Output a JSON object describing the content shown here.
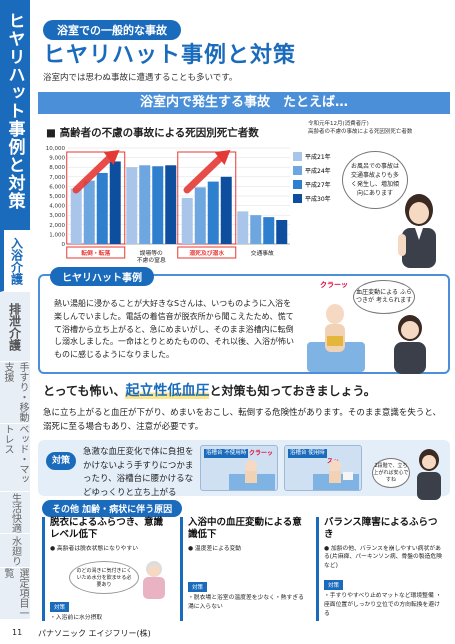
{
  "side": {
    "top_label": "ヒヤリハット事例と対策",
    "tabs": [
      "入浴介護",
      "排泄介護",
      "手すり・移動支援",
      "ベッド・マットレス",
      "生活快適",
      "水廻り",
      "選定項目一覧"
    ]
  },
  "header": {
    "pill": "浴室での一般的な事故",
    "title": "ヒヤリハット事例と対策",
    "lead": "浴室内では思わぬ事故に遭遇することも多いです。"
  },
  "banner": "浴室内で発生する事故　たとえば…",
  "chart_title": "■ 高齢者の不慮の事故による死因別死亡者数",
  "chart_source": [
    "令和元年12月(消費者庁)",
    "高齢者の不慮の事故による死因別死亡者数"
  ],
  "chart_data": {
    "type": "bar",
    "categories": [
      "転倒・転落",
      "誤嚥等の不慮の窒息",
      "溺死及び溺水",
      "交通事故"
    ],
    "category_lines": [
      [
        "転倒・転落"
      ],
      [
        "誤嚥等の",
        "不慮の窒息"
      ],
      [
        "溺死及び溺水"
      ],
      [
        "交通事故"
      ]
    ],
    "series": [
      {
        "name": "平成21年",
        "values": [
          5800,
          8000,
          4800,
          3400
        ]
      },
      {
        "name": "平成24年",
        "values": [
          6600,
          8200,
          5900,
          3000
        ]
      },
      {
        "name": "平成27年",
        "values": [
          7400,
          8100,
          6500,
          2800
        ]
      },
      {
        "name": "平成30年",
        "values": [
          8600,
          8200,
          7000,
          2500
        ]
      }
    ],
    "colors": [
      "#a9c6ea",
      "#6ea6e0",
      "#2f7fcf",
      "#0d4f9e"
    ],
    "yticks": [
      0,
      1000,
      2000,
      3000,
      4000,
      5000,
      6000,
      7000,
      8000,
      9000,
      10000
    ],
    "ylim": [
      0,
      10000
    ],
    "highlight": [
      0,
      2
    ]
  },
  "speech1": "お風呂での事故は交通事故よりも多く発生し、増加傾向にあります",
  "hiyari": {
    "tag": "ヒヤリハット事例",
    "text": "熱い湯船に浸かることが大好きなSさんは、いつものように入浴を楽しんでいました。電話の着信音が脱衣所から聞こえたため、慌てて浴槽から立ち上がると、急にめまいがし、そのまま浴槽内に転倒し溺水しました。一命はとりとめたものの、それ以後、入浴が怖いものに感じるようになりました。",
    "speech": "血圧変動による ふらつきが 考えられます",
    "sfx": "クラーッ"
  },
  "headline": {
    "pre": "とっても怖い、",
    "em": "起立性低血圧",
    "post": "と対策も知っておきましょう。"
  },
  "para": "急に立ち上がると血圧が下がり、めまいをおこし、転倒する危険性があります。そのまま意識を失うと、溺死に至る場合もあり、注意が必要です。",
  "taisaku": {
    "badge": "対策",
    "text": "急激な血圧変化で体に負担をかけないよう手すりにつかまったり、浴槽台に腰かけるなどゆっくりと立ち上がる",
    "label1": "浴槽台 不使用時",
    "label2": "浴槽台 使用時",
    "sfx1": "クラーッ",
    "sfx2": "スッ",
    "speech": "2段階で、立ち上がれば安心ですね"
  },
  "sonota": "その他 加齢・病状に伴う原因",
  "cols": [
    {
      "title": "脱衣によるふらつき、意識レベル低下",
      "b": "● 高齢者は脱衣状態になりやすい",
      "callout": "のどの渇きに気付きにくいため水分を飲ませる必要あり",
      "tag": "対策",
      "s": "・入浴前に水分摂取"
    },
    {
      "title": "入浴中の血圧変動による意識低下",
      "b": "● 温度差による変動",
      "tag": "対策",
      "s": "・脱衣場と浴室の温度差を少なく・熱すぎる湯に入らない"
    },
    {
      "title": "バランス障害によるふらつき",
      "b": "● 加齢の他、バランスを崩しやすい病状がある(片麻痺、パーキンソン病、骨盤の製造危険など)",
      "tag": "対策",
      "s": "・手すりやすべり止めマットなど環境整備 ・座面位置がしっかり立位での方向転換を避ける"
    }
  ],
  "footer": {
    "page": "11",
    "company": "パナソニック エイジフリー(株)"
  }
}
